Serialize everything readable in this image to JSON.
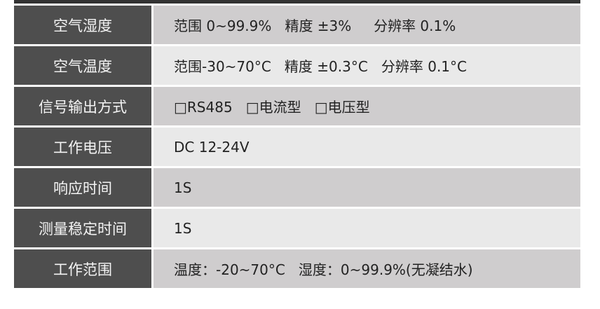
{
  "colors": {
    "label_bg": "#4e4e4e",
    "value_bg_dark": "#cfcdce",
    "value_bg_light": "#e9e9e9",
    "top_bar": "#333333"
  },
  "rows": [
    {
      "label": "空气湿度",
      "value": "范围 0~99.9%   精度 ±3%     分辨率 0.1%"
    },
    {
      "label": "空气温度",
      "value": "范围-30~70°C   精度 ±0.3°C   分辨率 0.1°C"
    },
    {
      "label": "信号输出方式",
      "value": "□RS485   □电流型   □电压型"
    },
    {
      "label": "工作电压",
      "value": "DC 12-24V"
    },
    {
      "label": "响应时间",
      "value": "1S"
    },
    {
      "label": "测量稳定时间",
      "value": "1S"
    },
    {
      "label": "工作范围",
      "value": "温度：-20~70°C   湿度：0~99.9%(无凝结水)"
    }
  ]
}
